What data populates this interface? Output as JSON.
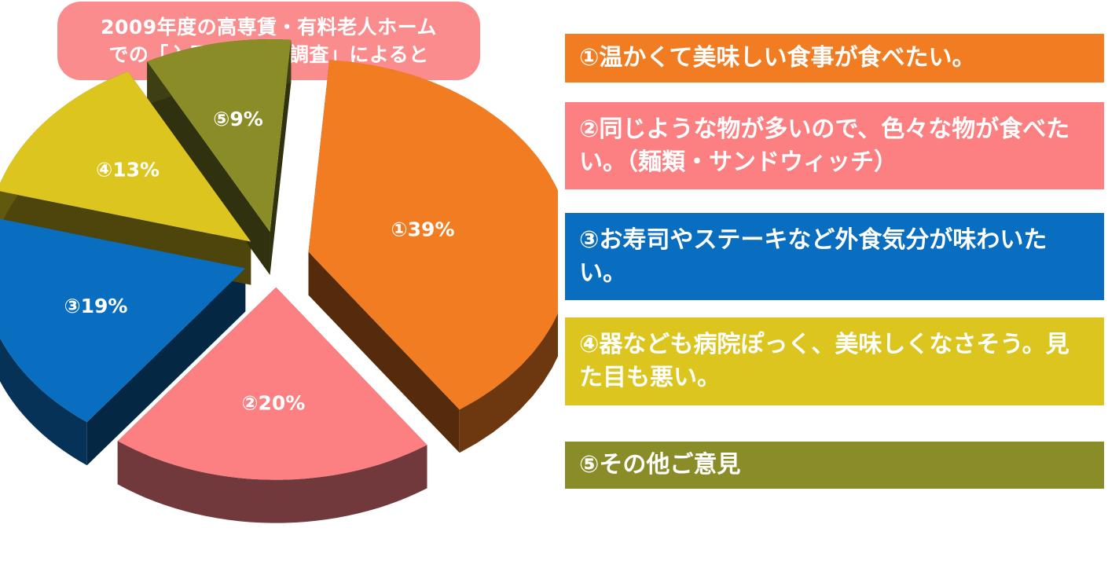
{
  "title": {
    "line1": "2009年度の高専賃・有料老人ホーム",
    "line2": "での「入居者聞取り調査」によると"
  },
  "colors": {
    "title_bg": "#fb8c8e",
    "slice1": "#f27c22",
    "slice2": "#fc7f82",
    "slice3": "#0a6ec0",
    "slice4": "#dcc51e",
    "slice5": "#8a8d27"
  },
  "legend": [
    {
      "text": "①温かくて美味しい食事が食べたい。",
      "color": "#f27c22"
    },
    {
      "text": "②同じような物が多いので、色々な物が食べたい。（麺類・サンドウィッチ）",
      "color": "#fc7f82"
    },
    {
      "text": "③お寿司やステーキなど外食気分が味わいたい。",
      "color": "#0a6ec0"
    },
    {
      "text": "④器なども病院ぽっく、美味しくなさそう。見た目も悪い。",
      "color": "#dcc51e"
    },
    {
      "text": "⑤その他ご意見",
      "color": "#8a8d27"
    }
  ],
  "chart_data": {
    "type": "pie",
    "style": "exploded-3d",
    "categories": [
      "①",
      "②",
      "③",
      "④",
      "⑤"
    ],
    "values": [
      39,
      20,
      19,
      13,
      9
    ],
    "labels": [
      "①39%",
      "②20%",
      "③19%",
      "④13%",
      "⑤9%"
    ],
    "colors": [
      "#f27c22",
      "#fc7f82",
      "#0a6ec0",
      "#dcc51e",
      "#8a8d27"
    ]
  }
}
